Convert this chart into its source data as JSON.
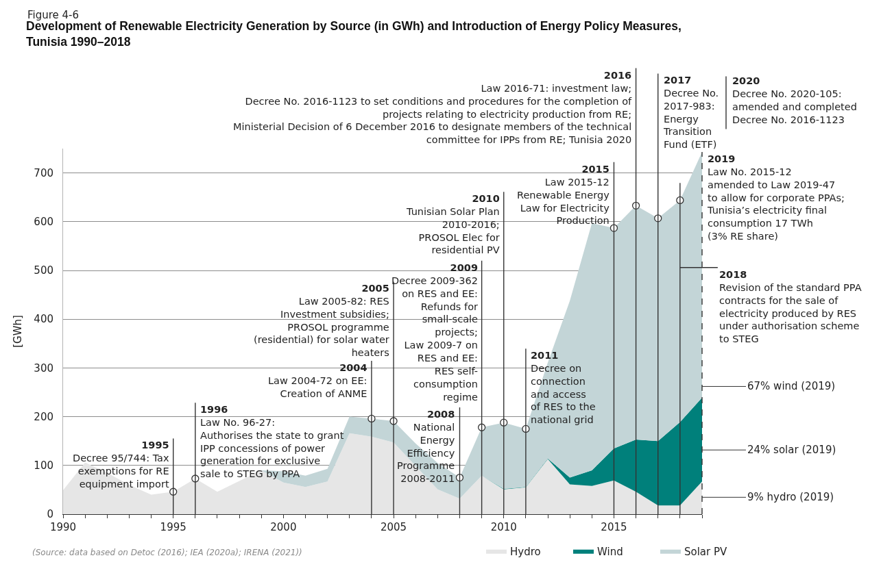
{
  "chart_data": {
    "type": "area",
    "stacked": true,
    "title": "Development of Renewable Electricity Generation by Source (in GWh) and Introduction of Energy Policy Measures,\nTunisia 1990–2018",
    "ylabel": "[GWh]",
    "x": [
      1990,
      1991,
      1992,
      1993,
      1994,
      1995,
      1996,
      1997,
      1998,
      1999,
      2000,
      2001,
      2002,
      2003,
      2004,
      2005,
      2006,
      2007,
      2008,
      2009,
      2010,
      2011,
      2012,
      2013,
      2014,
      2015,
      2016,
      2017,
      2018,
      2019
    ],
    "series": [
      {
        "name": "Hydro",
        "color": "#e6e6e6",
        "values": [
          49,
          106,
          85,
          60,
          40,
          46,
          73,
          46,
          68,
          90,
          65,
          56,
          67,
          166,
          159,
          147,
          99,
          51,
          32,
          79,
          51,
          55,
          113,
          61,
          58,
          69,
          46,
          18,
          18,
          67
        ]
      },
      {
        "name": "Wind",
        "color": "#00807b",
        "values": [
          0,
          0,
          0,
          0,
          0,
          0,
          0,
          0,
          0,
          0,
          0,
          0,
          0,
          0,
          0,
          0,
          0,
          0,
          0,
          0,
          1,
          1,
          1,
          14,
          32,
          66,
          107,
          132,
          171,
          172
        ]
      },
      {
        "name": "Solar PV",
        "color": "#c3d5d7",
        "values": [
          0,
          0,
          0,
          0,
          0,
          0,
          0,
          0,
          0,
          0,
          23,
          23,
          26,
          34,
          37,
          44,
          46,
          54,
          43,
          99,
          136,
          119,
          197,
          363,
          507,
          452,
          480,
          457,
          455,
          504
        ]
      },
      {
        "type": "scatter",
        "marker": "circle",
        "color": "#ffffff",
        "x": [
          1995,
          1996,
          2004,
          2005,
          2008,
          2009,
          2010,
          2011,
          2015,
          2016,
          2017,
          2018
        ],
        "values": [
          46,
          73,
          196,
          191,
          75,
          178,
          188,
          175,
          587,
          633,
          607,
          644
        ]
      }
    ],
    "xlim": [
      1990,
      2019
    ],
    "xticks": [
      1990,
      {
        "value": 1991,
        "label": null
      },
      {
        "value": 1992,
        "label": null
      },
      {
        "value": 1993,
        "label": null
      },
      {
        "value": 1994,
        "label": null
      },
      1995,
      {
        "value": 1996,
        "label": null
      },
      {
        "value": 1997,
        "label": null
      },
      {
        "value": 1998,
        "label": null
      },
      {
        "value": 1999,
        "label": null
      },
      2000,
      {
        "value": 2001,
        "label": null
      },
      {
        "value": 2002,
        "label": null
      },
      {
        "value": 2003,
        "label": null
      },
      {
        "value": 2004,
        "label": null
      },
      2005,
      {
        "value": 2006,
        "label": null
      },
      {
        "value": 2007,
        "label": null
      },
      {
        "value": 2008,
        "label": null
      },
      {
        "value": 2009,
        "label": null
      },
      2010,
      {
        "value": 2011,
        "label": null
      },
      {
        "value": 2012,
        "label": null
      },
      {
        "value": 2013,
        "label": null
      },
      {
        "value": 2014,
        "label": null
      },
      2015,
      {
        "value": 2016,
        "label": null
      },
      {
        "value": 2017,
        "label": null
      },
      {
        "value": 2018,
        "label": null
      },
      {
        "value": 2019,
        "label": null
      }
    ],
    "ylim": [
      0,
      750
    ],
    "yticks": [
      0,
      100,
      200,
      300,
      400,
      500,
      600,
      700
    ],
    "grid": "y",
    "legend": "bottom",
    "ref_lines": [
      {
        "axis": "x",
        "value": 1995,
        "label": "1995\nDecree 95/744: Tax\nexemptions for RE\nequipment import"
      },
      {
        "axis": "x",
        "value": 1996,
        "label": "1996\nLaw No. 96-27:\nAuthorises the state to grant\nIPP concessions of power\ngeneration for exclusive\nsale to STEG by PPA"
      },
      {
        "axis": "x",
        "value": 2004,
        "label": "2004\nLaw 2004-72 on EE:\nCreation of ANME"
      },
      {
        "axis": "x",
        "value": 2005,
        "label": "2005\nLaw 2005-82: RES\nInvestment subsidies;\nPROSOL programme\n(residential) for solar water\nheaters"
      },
      {
        "axis": "x",
        "value": 2008,
        "label": "2008\nNational\nEnergy\nEfficiency\nProgramme\n2008-2011"
      },
      {
        "axis": "x",
        "value": 2009,
        "label": "2009\nDecree 2009-362\non RES and EE:\nRefunds for\nsmall-scale\nprojects;\nLaw 2009-7 on\nRES and EE:\nRES self-\nconsumption\nregime"
      },
      {
        "axis": "x",
        "value": 2010,
        "label": "2010\nTunisian Solar Plan\n2010-2016;\nPROSOL Elec for\nresidential PV"
      },
      {
        "axis": "x",
        "value": 2011,
        "label": "2011\nDecree on\nconnection\nand access\nof RES to the\nnational grid"
      },
      {
        "axis": "x",
        "value": 2015,
        "label": "2015\nLaw 2015-12\nRenewable Energy\nLaw for Electricity\nProduction"
      },
      {
        "axis": "x",
        "value": 2016,
        "label": "2016\nLaw 2016-71: investment law;\nDecree No. 2016-1123 to set conditions and procedures for the completion of\nprojects relating to electricity production from RE;\nMinisterial Decision of 6 December 2016 to designate members of the technical\ncommittee for IPPs from RE; Tunisia 2020"
      },
      {
        "axis": "x",
        "value": 2017,
        "label": "2017\nDecree No.\n2017-983:\nEnergy\nTransition\nFund (ETF)"
      },
      {
        "axis": "x",
        "value": 2018,
        "label": "2018\nRevision of the standard PPA\ncontracts for the sale of\nelectricity produced by RES\nunder authorisation scheme\nto STEG"
      },
      {
        "axis": "x",
        "value": 2019,
        "line_style": "dashed",
        "label": "2019\nLaw No. 2015-12\namended to Law 2019-47\nto allow for corporate PPAs;\nTunisia’s electricity final\nconsumption 17 TWh\n(3% RE share)"
      }
    ],
    "annotations": [
      "Figure 4-6",
      "(Source: data based on Detoc (2016); IEA (2020a); IRENA (2021))",
      "2020\nDecree No. 2020-105:\namended and completed\nDecree No. 2016-1123",
      "67% wind (2019)",
      "24% solar (2019)",
      "9% hydro (2019)"
    ]
  }
}
